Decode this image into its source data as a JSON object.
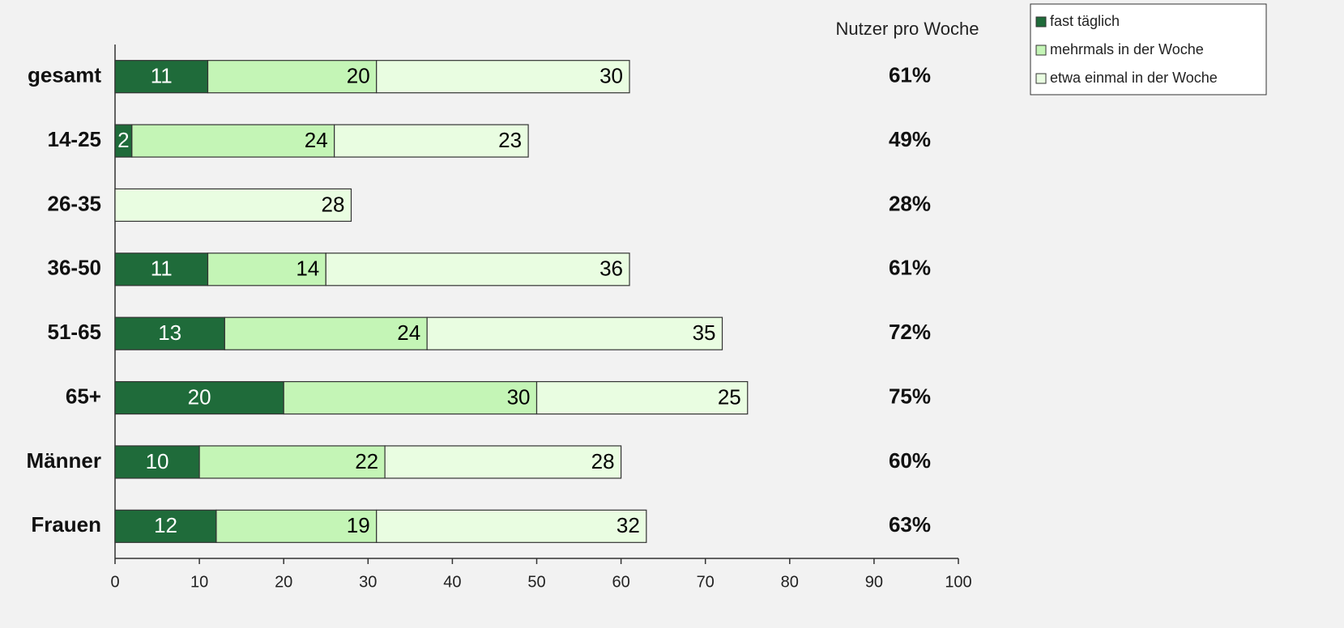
{
  "chart_data": {
    "type": "stacked-bar-horizontal",
    "categories": [
      "gesamt",
      "14-25",
      "26-35",
      "36-50",
      "51-65",
      "65+",
      "Männer",
      "Frauen"
    ],
    "series": [
      {
        "name": "fast täglich",
        "color": "#1f6b3a",
        "label_color": "#ffffff",
        "values": [
          11,
          2,
          null,
          11,
          13,
          20,
          10,
          12
        ]
      },
      {
        "name": "mehrmals in der Woche",
        "color": "#c4f5b6",
        "label_color": "#000000",
        "values": [
          20,
          24,
          null,
          14,
          24,
          30,
          22,
          19
        ]
      },
      {
        "name": "etwa einmal in der Woche",
        "color": "#e9fde1",
        "label_color": "#000000",
        "values": [
          30,
          23,
          28,
          36,
          35,
          25,
          28,
          32
        ]
      }
    ],
    "xlim": [
      0,
      100
    ],
    "xticks": [
      0,
      10,
      20,
      30,
      40,
      50,
      60,
      70,
      80,
      90,
      100
    ],
    "totals_title": "Nutzer pro Woche",
    "totals": [
      61,
      49,
      28,
      61,
      72,
      75,
      60,
      63
    ],
    "totals_labels": [
      "61%",
      "49%",
      "28%",
      "61%",
      "72%",
      "75%",
      "60%",
      "63%"
    ],
    "legend": "top-right"
  }
}
